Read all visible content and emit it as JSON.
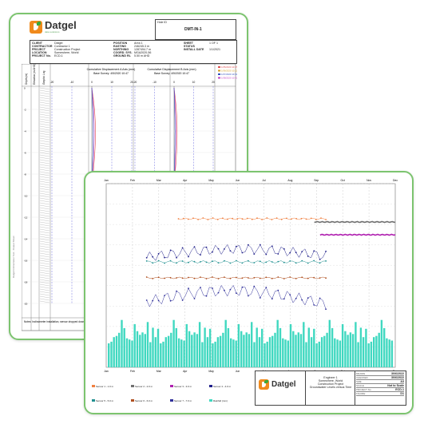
{
  "back_sheet": {
    "logo": {
      "name": "Datgel",
      "tagline": "data solutions"
    },
    "hole_id_label": "Hole ID",
    "hole_id_value": "DMT-IN-1",
    "fields_left": [
      {
        "label": "CLIENT",
        "value": "Datgel"
      },
      {
        "label": "CONTRACTOR",
        "value": "Contractor 1"
      },
      {
        "label": "PROJECT",
        "value": "Construction Project"
      },
      {
        "label": "LOCATION",
        "value": "Somewhere, World"
      },
      {
        "label": "PROJECT No.",
        "value": "ECD-1"
      }
    ],
    "fields_mid": [
      {
        "label": "POSITION",
        "value": "Area 1"
      },
      {
        "label": "EASTING",
        "value": "246245.3 m"
      },
      {
        "label": "NORTHING",
        "value": "1287494.7 m"
      },
      {
        "label": "COORD. SYS.",
        "value": "MGA2020-56"
      },
      {
        "label": "GROUND RL",
        "value": "5.50 m AHD"
      }
    ],
    "fields_right": [
      {
        "label": "SHEET",
        "value": "1 OF 1"
      },
      {
        "label": "STATUS",
        "value": ""
      },
      {
        "label": "INSTALL DATE",
        "value": "1/1/2021"
      }
    ],
    "column_headers": [
      "Depth (m)",
      "Elevation (m AHD)",
      "Graphic Log"
    ],
    "plot_a_title": "Cumulative Displacement A Axis (mm)",
    "plot_a_sub": "Base Survey: 4/5/2020 10:47",
    "plot_b_title": "Cumulative Displacement B Axis (mm)",
    "plot_b_sub": "Base Survey: 4/5/2020 10:47",
    "legend": [
      {
        "label": "1/05/2020 10:47",
        "color": "#e05050"
      },
      {
        "label": "1/06/2020 10:21",
        "color": "#d4a020"
      },
      {
        "label": "1/07/2020 10:31",
        "color": "#3050c0"
      },
      {
        "label": "1/08/2020 10:41",
        "color": "#c040c0"
      }
    ],
    "depth_ticks": [
      "0",
      "-2",
      "-4",
      "-6",
      "-8",
      "-10",
      "-12",
      "-14",
      "-16",
      "-18",
      "-20"
    ],
    "x_ticks": [
      "-20",
      "-10",
      "0",
      "10",
      "20"
    ],
    "footer_label": "Notes: Inclinometer installation, sensor dropped down hole",
    "side_note": "Datgel Inclinometer Tool - Output Sheet"
  },
  "front_sheet": {
    "x_ticks": [
      "Jan",
      "Feb",
      "Mar",
      "Apr",
      "May",
      "Jun",
      "Jul",
      "Aug",
      "Sep",
      "Oct",
      "Nov",
      "Dec"
    ],
    "legend": [
      {
        "label": "Sensor 1 - 1.0 m",
        "color": "#f08040"
      },
      {
        "label": "Sensor 2 - 2.0 m",
        "color": "#707070"
      },
      {
        "label": "Sensor 3 - 3.0 m",
        "color": "#b020b0"
      },
      {
        "label": "Sensor 4 - 4.0 m",
        "color": "#20208a"
      },
      {
        "label": "Sensor 5 - 5.0 m",
        "color": "#209090"
      },
      {
        "label": "Sensor 6 - 6.0 m",
        "color": "#b05020"
      },
      {
        "label": "Sensor 7 - 7.0 m",
        "color": "#30309a"
      },
      {
        "label": "Rainfall (mm)",
        "color": "#40d8c0"
      }
    ],
    "title_block": {
      "company": "Datgel",
      "lines": [
        "Engineer 1",
        "Somewhere, World",
        "Construction Project",
        "Groundwater Levels versus Time"
      ],
      "fields": [
        {
          "label": "DRAWN",
          "value": "30/6/2022"
        },
        {
          "label": "CHECKED",
          "value": "30/6/2022"
        },
        {
          "label": "SIZE",
          "value": "A3"
        },
        {
          "label": "SCALE",
          "value": "Not to Scale"
        },
        {
          "label": "PROJECT No.",
          "value": "ECD-1"
        },
        {
          "label": "FIGURE",
          "value": "D1"
        }
      ]
    }
  }
}
